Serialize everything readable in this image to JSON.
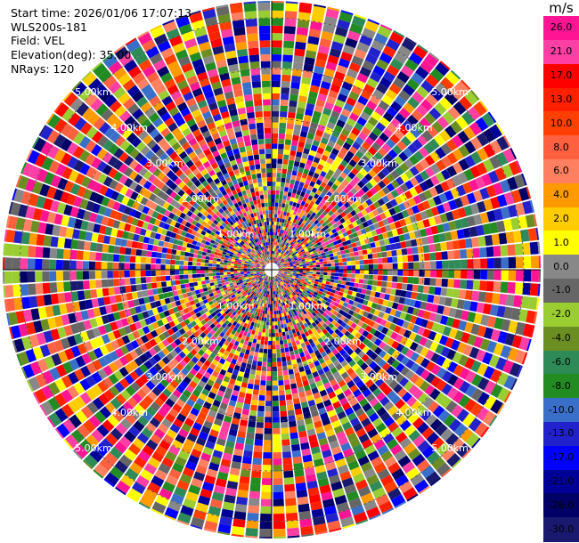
{
  "header": {
    "start_time": "Start time: 2026/01/06 17:07:13",
    "instrument": "WLS200s-181",
    "field": "Field: VEL",
    "elevation": "Elevation(deg): 35.00",
    "nrays": "NRays: 120"
  },
  "chart_data": {
    "type": "heatmap",
    "projection": "polar-ppi",
    "units": "m/s",
    "n_rays": 120,
    "range_ring_labels_km": [
      "1.00km",
      "2.00km",
      "3.00km",
      "4.00km",
      "5.00km"
    ],
    "colorbar": {
      "unit_label": "m/s",
      "ticks": [
        "26.0",
        "21.0",
        "17.0",
        "13.0",
        "10.0",
        "8.0",
        "6.0",
        "4.0",
        "2.0",
        "1.0",
        "0.0",
        "-1.0",
        "-2.0",
        "-4.0",
        "-6.0",
        "-8.0",
        "-10.0",
        "-13.0",
        "-17.0",
        "-21.0",
        "-26.0",
        "-30.0"
      ],
      "colors": [
        "#ff1493",
        "#ff3fa4",
        "#ff0000",
        "#ff2000",
        "#ff4000",
        "#ff6040",
        "#ff8060",
        "#ff9a00",
        "#ffcc00",
        "#ffff00",
        "#888888",
        "#666666",
        "#9acd32",
        "#6b8e23",
        "#2e8b57",
        "#228b22",
        "#3a6fc9",
        "#2222cc",
        "#0000ff",
        "#000099",
        "#000066",
        "#191970"
      ]
    }
  }
}
